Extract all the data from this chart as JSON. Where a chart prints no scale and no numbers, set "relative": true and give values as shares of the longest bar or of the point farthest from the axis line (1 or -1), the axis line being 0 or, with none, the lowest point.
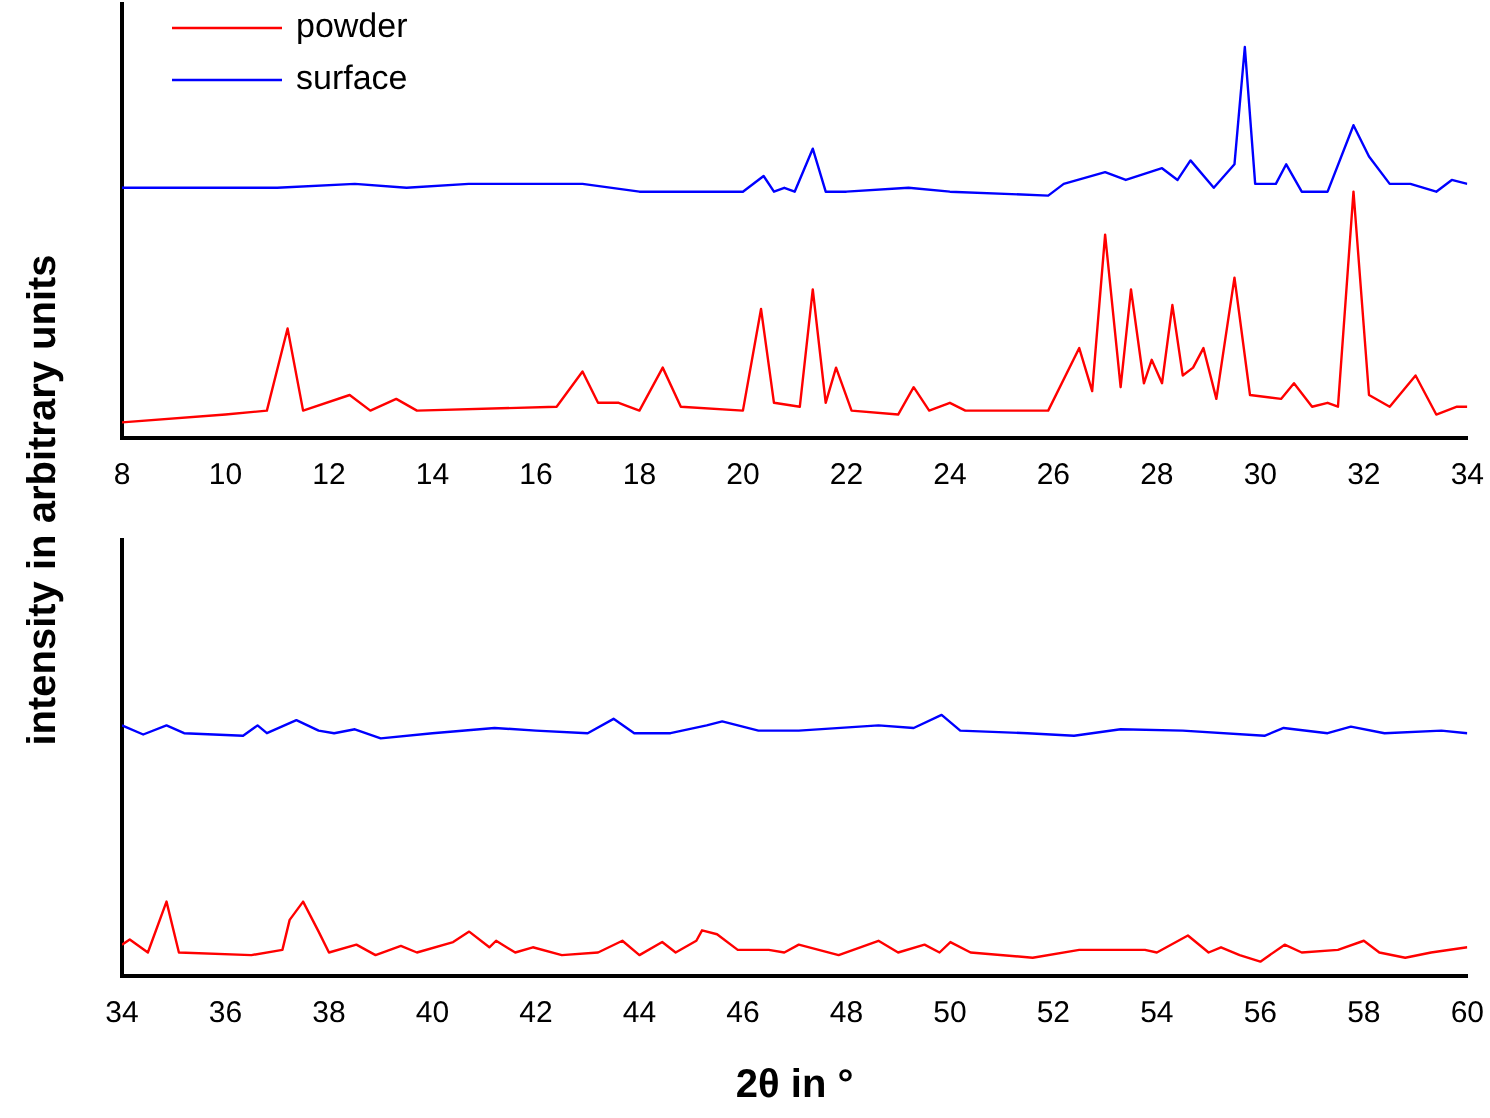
{
  "chart_data": [
    {
      "type": "line",
      "relative": true,
      "legend": "top left",
      "ylabel": "intensity in arbitrary units",
      "tick_labels": "x",
      "xlim": [
        8,
        34
      ],
      "xticks": [
        8,
        10,
        12,
        14,
        16,
        18,
        20,
        22,
        24,
        26,
        28,
        30,
        32,
        34
      ],
      "series": [
        {
          "name": "powder",
          "color": "#ff0000",
          "x": [
            8,
            10,
            10.8,
            11.2,
            11.5,
            12.4,
            12.8,
            13.3,
            13.7,
            16.4,
            16.9,
            17.2,
            17.6,
            18,
            18.45,
            18.8,
            20,
            20.35,
            20.6,
            21.1,
            21.35,
            21.6,
            21.8,
            22.1,
            23,
            23.3,
            23.6,
            24,
            24.3,
            25.9,
            26.5,
            26.75,
            27,
            27.3,
            27.5,
            27.75,
            27.9,
            28.1,
            28.3,
            28.5,
            28.7,
            28.9,
            29.15,
            29.5,
            29.8,
            30.4,
            30.65,
            31,
            31.3,
            31.5,
            31.8,
            32.1,
            32.5,
            33,
            33.4,
            33.8,
            34
          ],
          "values": [
            0.04,
            0.06,
            0.07,
            0.28,
            0.07,
            0.11,
            0.07,
            0.1,
            0.07,
            0.08,
            0.17,
            0.09,
            0.09,
            0.07,
            0.18,
            0.08,
            0.07,
            0.33,
            0.09,
            0.08,
            0.38,
            0.09,
            0.18,
            0.07,
            0.06,
            0.13,
            0.07,
            0.09,
            0.07,
            0.07,
            0.23,
            0.12,
            0.52,
            0.13,
            0.38,
            0.14,
            0.2,
            0.14,
            0.34,
            0.16,
            0.18,
            0.23,
            0.1,
            0.41,
            0.11,
            0.1,
            0.14,
            0.08,
            0.09,
            0.08,
            0.63,
            0.11,
            0.08,
            0.16,
            0.06,
            0.08,
            0.08
          ]
        },
        {
          "name": "surface",
          "color": "#0000ff",
          "x": [
            8,
            11,
            12.5,
            13.5,
            14.7,
            16.9,
            18,
            20,
            20.4,
            20.6,
            20.8,
            21,
            21.35,
            21.6,
            22,
            23.2,
            24,
            25.9,
            26.2,
            27,
            27.4,
            28.1,
            28.4,
            28.65,
            29.1,
            29.5,
            29.7,
            29.9,
            30.3,
            30.5,
            30.8,
            31.3,
            31.8,
            32.1,
            32.5,
            32.9,
            33.4,
            33.7,
            34
          ],
          "values": [
            0.64,
            0.64,
            0.65,
            0.64,
            0.65,
            0.65,
            0.63,
            0.63,
            0.67,
            0.63,
            0.64,
            0.63,
            0.74,
            0.63,
            0.63,
            0.64,
            0.63,
            0.62,
            0.65,
            0.68,
            0.66,
            0.69,
            0.66,
            0.71,
            0.64,
            0.7,
            1,
            0.65,
            0.65,
            0.7,
            0.63,
            0.63,
            0.8,
            0.72,
            0.65,
            0.65,
            0.63,
            0.66,
            0.65
          ]
        }
      ]
    },
    {
      "type": "line",
      "relative": true,
      "xlabel": "2θ in °",
      "tick_labels": "x",
      "xlim": [
        34,
        60
      ],
      "xticks": [
        34,
        36,
        38,
        40,
        42,
        44,
        46,
        48,
        50,
        52,
        54,
        56,
        58,
        60
      ],
      "series": [
        {
          "color": "#ff0000",
          "x": [
            34,
            34.15,
            34.5,
            34.86,
            35.1,
            36.5,
            37.1,
            37.24,
            37.5,
            37.8,
            38,
            38.53,
            38.9,
            39.39,
            39.7,
            40.4,
            40.71,
            41.1,
            41.23,
            41.6,
            41.94,
            42.5,
            43.2,
            43.67,
            44,
            44.44,
            44.7,
            45.1,
            45.21,
            45.5,
            45.9,
            46.5,
            46.8,
            47.08,
            47.85,
            48.62,
            49,
            49.51,
            49.8,
            50.01,
            50.4,
            51.6,
            52.5,
            53.77,
            54,
            54.6,
            55,
            55.24,
            55.6,
            56,
            56.47,
            56.8,
            57.5,
            58,
            58.3,
            58.8,
            59.3,
            60
          ],
          "values": [
            0.12,
            0.14,
            0.09,
            0.285,
            0.09,
            0.08,
            0.1,
            0.215,
            0.285,
            0.17,
            0.09,
            0.12,
            0.08,
            0.115,
            0.09,
            0.13,
            0.17,
            0.11,
            0.135,
            0.09,
            0.11,
            0.08,
            0.09,
            0.135,
            0.08,
            0.13,
            0.09,
            0.135,
            0.175,
            0.16,
            0.1,
            0.1,
            0.09,
            0.12,
            0.08,
            0.135,
            0.09,
            0.12,
            0.09,
            0.13,
            0.09,
            0.07,
            0.1,
            0.1,
            0.09,
            0.155,
            0.09,
            0.11,
            0.08,
            0.055,
            0.12,
            0.09,
            0.1,
            0.135,
            0.09,
            0.07,
            0.09,
            0.11
          ]
        },
        {
          "color": "#0000ff",
          "x": [
            34,
            34.41,
            34.86,
            35.2,
            36.34,
            36.62,
            36.8,
            37.37,
            37.8,
            38.1,
            38.5,
            39,
            40,
            41.2,
            42,
            43,
            43.5,
            43.9,
            44.6,
            45.3,
            45.6,
            46.3,
            47.08,
            48.62,
            49.3,
            49.84,
            50.2,
            51.5,
            52.4,
            53.3,
            54.5,
            56.08,
            56.45,
            57.3,
            57.75,
            58.4,
            59.5,
            60
          ],
          "values": [
            0.96,
            0.925,
            0.96,
            0.93,
            0.92,
            0.96,
            0.93,
            0.98,
            0.94,
            0.93,
            0.945,
            0.91,
            0.93,
            0.95,
            0.94,
            0.93,
            0.985,
            0.93,
            0.93,
            0.96,
            0.975,
            0.94,
            0.94,
            0.96,
            0.95,
            1,
            0.94,
            0.93,
            0.92,
            0.945,
            0.94,
            0.92,
            0.95,
            0.93,
            0.955,
            0.93,
            0.94,
            0.93
          ]
        }
      ]
    }
  ]
}
